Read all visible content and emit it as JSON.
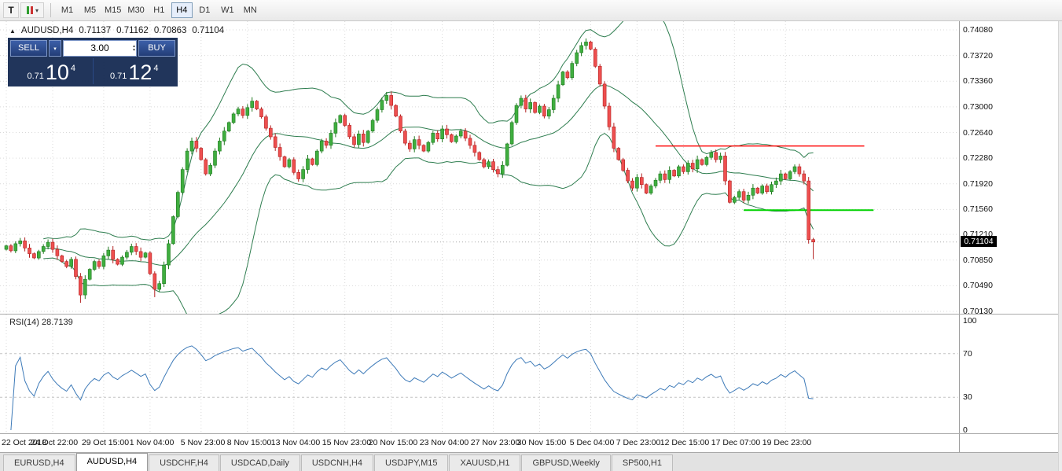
{
  "toolbar": {
    "icon_t": "T",
    "timeframes": [
      "M1",
      "M5",
      "M15",
      "M30",
      "H1",
      "H4",
      "D1",
      "W1",
      "MN"
    ],
    "active_timeframe": "H4"
  },
  "chart": {
    "symbol": "AUDUSD,H4",
    "ohlc": {
      "open": "0.71137",
      "high": "0.71162",
      "low": "0.70863",
      "close": "0.71104"
    }
  },
  "trade": {
    "sell_label": "SELL",
    "buy_label": "BUY",
    "volume": "3.00",
    "bid": {
      "prefix": "0.71",
      "big": "10",
      "sup": "4"
    },
    "ask": {
      "prefix": "0.71",
      "big": "12",
      "sup": "4"
    }
  },
  "rsi": {
    "label": "RSI(14) 28.7139"
  },
  "tabs": {
    "items": [
      "EURUSD,H4",
      "AUDUSD,H4",
      "USDCHF,H4",
      "USDCAD,Daily",
      "USDCNH,H4",
      "USDJPY,M15",
      "XAUUSD,H1",
      "GBPUSD,Weekly",
      "SP500,H1"
    ],
    "active": "AUDUSD,H4"
  },
  "chart_data": {
    "type": "candlestick",
    "symbol": "AUDUSD",
    "timeframe": "H4",
    "current_price": "0.71104",
    "open_first": 0.71,
    "closes": [
      0.7105,
      0.7098,
      0.7108,
      0.7112,
      0.7102,
      0.7094,
      0.7088,
      0.7097,
      0.7104,
      0.711,
      0.71,
      0.7091,
      0.7083,
      0.7076,
      0.7086,
      0.7062,
      0.7036,
      0.7058,
      0.7072,
      0.7083,
      0.7076,
      0.7091,
      0.7099,
      0.7086,
      0.7079,
      0.7089,
      0.7096,
      0.7104,
      0.7097,
      0.7089,
      0.7095,
      0.7066,
      0.7044,
      0.7052,
      0.7078,
      0.7108,
      0.7146,
      0.718,
      0.7212,
      0.7238,
      0.7252,
      0.7242,
      0.7226,
      0.7206,
      0.7218,
      0.7238,
      0.7252,
      0.7266,
      0.7278,
      0.729,
      0.7297,
      0.7288,
      0.7299,
      0.7308,
      0.7297,
      0.7286,
      0.727,
      0.7258,
      0.7243,
      0.723,
      0.7216,
      0.7226,
      0.7208,
      0.7199,
      0.7212,
      0.7227,
      0.7219,
      0.7238,
      0.7252,
      0.7246,
      0.7263,
      0.7278,
      0.7288,
      0.7274,
      0.7258,
      0.7247,
      0.7262,
      0.725,
      0.7266,
      0.7281,
      0.7296,
      0.7309,
      0.7316,
      0.7302,
      0.7287,
      0.7266,
      0.7249,
      0.7241,
      0.7254,
      0.7246,
      0.7238,
      0.725,
      0.7263,
      0.7255,
      0.7269,
      0.7261,
      0.7251,
      0.7259,
      0.7266,
      0.7256,
      0.7246,
      0.7236,
      0.7226,
      0.7216,
      0.7223,
      0.7212,
      0.7206,
      0.7218,
      0.7248,
      0.7278,
      0.7302,
      0.7312,
      0.7297,
      0.7306,
      0.7292,
      0.7301,
      0.7287,
      0.7296,
      0.7312,
      0.7331,
      0.7349,
      0.7341,
      0.7361,
      0.7376,
      0.7386,
      0.7391,
      0.7381,
      0.7357,
      0.7332,
      0.7301,
      0.7272,
      0.7242,
      0.7226,
      0.7211,
      0.7196,
      0.7186,
      0.7201,
      0.7191,
      0.7179,
      0.7189,
      0.7197,
      0.7206,
      0.7198,
      0.7211,
      0.7203,
      0.7216,
      0.7209,
      0.7221,
      0.7213,
      0.7226,
      0.7219,
      0.7229,
      0.7236,
      0.7226,
      0.7231,
      0.7196,
      0.7166,
      0.7173,
      0.7181,
      0.7169,
      0.7176,
      0.7186,
      0.7179,
      0.7189,
      0.7181,
      0.7191,
      0.7196,
      0.7206,
      0.7199,
      0.7209,
      0.7216,
      0.7206,
      0.7196,
      0.71137,
      0.71104
    ],
    "last_candle": {
      "open": 0.71137,
      "high": 0.71162,
      "low": 0.70863,
      "close": 0.71104
    },
    "special_wicks": {
      "16": {
        "low": 0.7025
      },
      "32": {
        "low": 0.7033
      },
      "82": {
        "high": 0.7321
      },
      "125": {
        "high": 0.7396
      }
    },
    "indicators": {
      "bollinger": {
        "period": 20,
        "deviation": 2
      },
      "rsi": {
        "period": 14,
        "value": 28.7139,
        "levels": [
          70,
          30
        ]
      }
    },
    "hlines": [
      {
        "name": "resistance",
        "price": 0.7245,
        "i1": 140,
        "i2": 185
      },
      {
        "name": "support",
        "price": 0.7155,
        "i1": 159,
        "i2": 187
      }
    ],
    "price_axis": {
      "top_price": 0.7408,
      "bottom_price": 0.7013,
      "ticks": [
        "0.74080",
        "0.73720",
        "0.73360",
        "0.73000",
        "0.72640",
        "0.72280",
        "0.71920",
        "0.71560",
        "0.71210",
        "0.70850",
        "0.70490",
        "0.70130"
      ]
    },
    "time_axis": [
      {
        "label": "22 Oct 2018",
        "i": 0
      },
      {
        "label": "24 Oct 22:00",
        "i": 10
      },
      {
        "label": "29 Oct 15:00",
        "i": 21
      },
      {
        "label": "1 Nov 04:00",
        "i": 31
      },
      {
        "label": "5 Nov 23:00",
        "i": 42
      },
      {
        "label": "8 Nov 15:00",
        "i": 52
      },
      {
        "label": "13 Nov 04:00",
        "i": 62
      },
      {
        "label": "15 Nov 23:00",
        "i": 73
      },
      {
        "label": "20 Nov 15:00",
        "i": 83
      },
      {
        "label": "23 Nov 04:00",
        "i": 94
      },
      {
        "label": "27 Nov 23:00",
        "i": 105
      },
      {
        "label": "30 Nov 15:00",
        "i": 115
      },
      {
        "label": "5 Dec 04:00",
        "i": 126
      },
      {
        "label": "7 Dec 23:00",
        "i": 136
      },
      {
        "label": "12 Dec 15:00",
        "i": 146
      },
      {
        "label": "17 Dec 07:00",
        "i": 157
      },
      {
        "label": "19 Dec 23:00",
        "i": 168
      }
    ],
    "rsi_axis": [
      "100",
      "70",
      "30",
      "0"
    ],
    "colors": {
      "up": "#3fae3f",
      "up_border": "#1f7a1f",
      "down": "#ee4f4f",
      "down_border": "#b22222",
      "bollinger": "#2e7d4f",
      "rsi_line": "#3d7ab8",
      "grid": "#d9d9d9",
      "resistance": "#ff0000",
      "support": "#00d200",
      "price_tag_bg": "#000000"
    }
  }
}
